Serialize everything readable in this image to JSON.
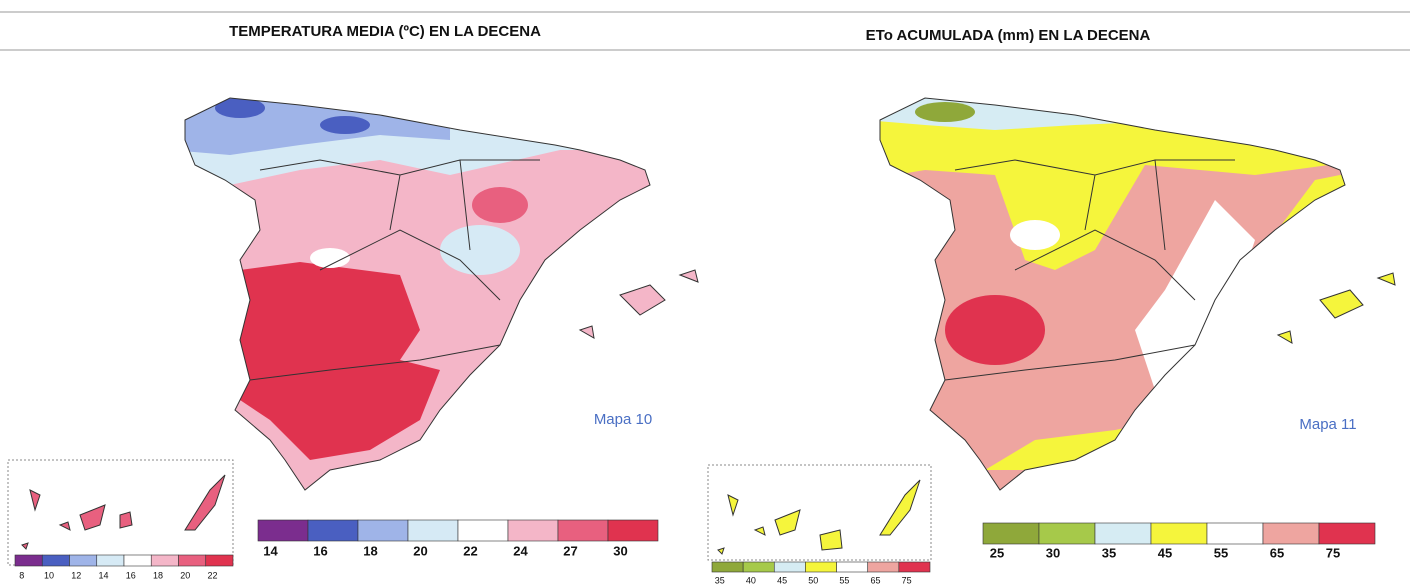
{
  "maps": [
    {
      "title": "TEMPERATURA MEDIA (ºC) EN LA DECENA",
      "label": "Mapa 10",
      "legend": {
        "colors": [
          "#7b2d8e",
          "#4a5fc1",
          "#9fb4e8",
          "#d6eaf5",
          "#ffffff",
          "#f4b6c8",
          "#e8607f",
          "#e0334f"
        ],
        "labels": [
          "14",
          "16",
          "18",
          "20",
          "22",
          "24",
          "27",
          "30"
        ]
      },
      "inset_legend": {
        "colors": [
          "#7b2d8e",
          "#4a5fc1",
          "#9fb4e8",
          "#d6eaf5",
          "#ffffff",
          "#f4b6c8",
          "#e8607f",
          "#e0334f"
        ],
        "labels": [
          "8",
          "10",
          "12",
          "14",
          "16",
          "18",
          "20",
          "22"
        ]
      }
    },
    {
      "title": "ETo ACUMULADA (mm) EN LA DECENA",
      "label": "Mapa 11",
      "legend": {
        "colors": [
          "#8fa83a",
          "#a6c94a",
          "#d6ecf3",
          "#f5f53c",
          "#ffffff",
          "#eea5a0",
          "#e0334f"
        ],
        "labels": [
          "25",
          "30",
          "35",
          "45",
          "55",
          "65",
          "75"
        ]
      },
      "inset_legend": {
        "colors": [
          "#8fa83a",
          "#a6c94a",
          "#d6ecf3",
          "#f5f53c",
          "#ffffff",
          "#eea5a0",
          "#e0334f"
        ],
        "labels": [
          "35",
          "40",
          "45",
          "50",
          "55",
          "65",
          "75"
        ]
      }
    }
  ]
}
